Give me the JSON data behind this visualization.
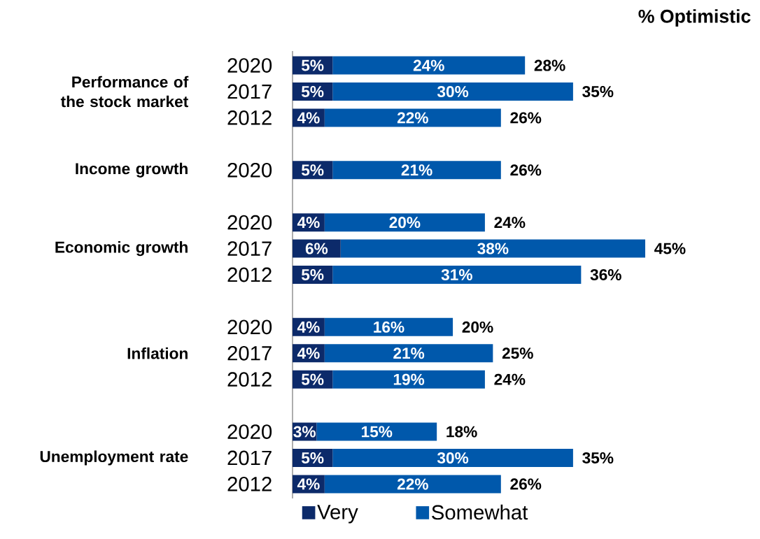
{
  "chart_data": {
    "type": "bar",
    "orientation": "horizontal",
    "stacked": true,
    "legend": "bottom",
    "categories": [
      "2020",
      "2017",
      "2012",
      null,
      "2020",
      null,
      "2020",
      "2017",
      "2012",
      null,
      "2020",
      "2017",
      "2012",
      null,
      "2020",
      "2017",
      "2012"
    ],
    "series": [
      {
        "name": "Very",
        "color": "#0c2a6a",
        "values": [
          5,
          5,
          4,
          null,
          5,
          null,
          4,
          6,
          5,
          null,
          4,
          4,
          5,
          null,
          3,
          5,
          4
        ],
        "value_labels": [
          "5%",
          "5%",
          "4%",
          null,
          "5%",
          null,
          "4%",
          "6%",
          "5%",
          null,
          "4%",
          "4%",
          "5%",
          null,
          "3%",
          "5%",
          "4%"
        ]
      },
      {
        "name": "Somewhat",
        "color": "#0058ab",
        "values": [
          24,
          30,
          22,
          null,
          21,
          null,
          20,
          38,
          31,
          null,
          16,
          21,
          19,
          null,
          15,
          30,
          22
        ],
        "value_labels": [
          "24%",
          "30%",
          "22%",
          null,
          "21%",
          null,
          "20%",
          "38%",
          "31%",
          null,
          "16%",
          "21%",
          "19%",
          null,
          "15%",
          "30%",
          "22%"
        ]
      }
    ],
    "totals": [
      "28%",
      "35%",
      "26%",
      null,
      "26%",
      null,
      "24%",
      "45%",
      "36%",
      null,
      "20%",
      "25%",
      "24%",
      null,
      "18%",
      "35%",
      "26%"
    ],
    "annotations": [
      "Performance of the stock market",
      "Income growth",
      "Economic growth",
      "Inflation",
      "Unemployment rate",
      "% Optimistic"
    ]
  }
}
